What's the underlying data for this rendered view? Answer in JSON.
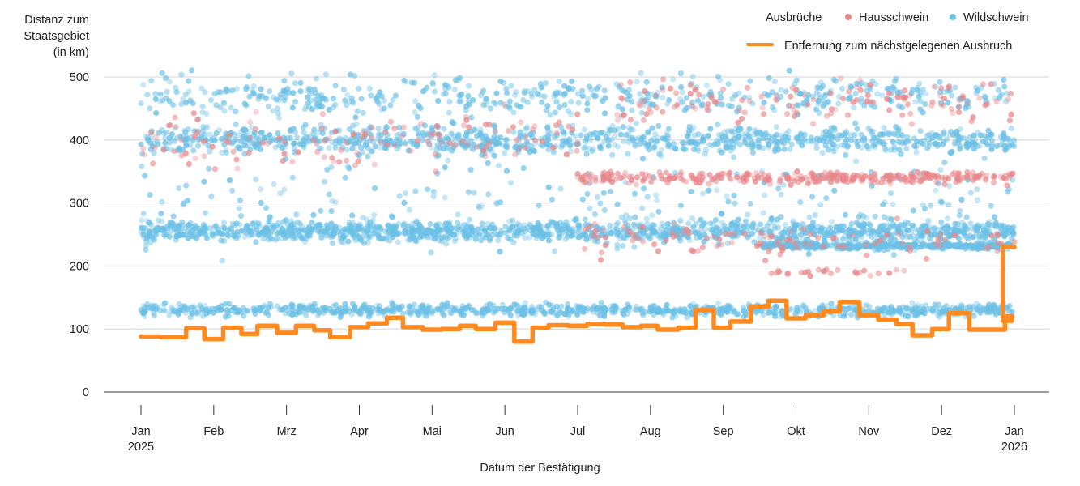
{
  "chart_data": {
    "type": "scatter",
    "ylabel_lines": [
      "Distanz zum",
      "Staatsgebiet",
      "(in km)"
    ],
    "xlabel": "Datum der Bestätigung",
    "ylim": [
      0,
      520
    ],
    "yticks": [
      0,
      100,
      200,
      300,
      400,
      500
    ],
    "x_range_months": [
      0,
      12
    ],
    "xticks": [
      {
        "label": "Jan",
        "sub": "2025",
        "pos": 0
      },
      {
        "label": "Feb",
        "sub": "",
        "pos": 1
      },
      {
        "label": "Mrz",
        "sub": "",
        "pos": 2
      },
      {
        "label": "Apr",
        "sub": "",
        "pos": 3
      },
      {
        "label": "Mai",
        "sub": "",
        "pos": 4
      },
      {
        "label": "Jun",
        "sub": "",
        "pos": 5
      },
      {
        "label": "Jul",
        "sub": "",
        "pos": 6
      },
      {
        "label": "Aug",
        "sub": "",
        "pos": 7
      },
      {
        "label": "Sep",
        "sub": "",
        "pos": 8
      },
      {
        "label": "Okt",
        "sub": "",
        "pos": 9
      },
      {
        "label": "Nov",
        "sub": "",
        "pos": 10
      },
      {
        "label": "Dez",
        "sub": "",
        "pos": 11
      },
      {
        "label": "Jan",
        "sub": "2026",
        "pos": 12
      }
    ],
    "legend": {
      "title": "Ausbrüche",
      "items": [
        {
          "name": "Hausschwein",
          "color": "#e8868a"
        },
        {
          "name": "Wildschwein",
          "color": "#6bc0e6"
        }
      ],
      "line": {
        "name": "Entfernung zum nächstgelegenen Ausbruch",
        "color": "#ff8a1f"
      }
    },
    "scatter_bands": [
      {
        "series": "Wildschwein",
        "x0": 0.0,
        "x1": 12.0,
        "y": 130,
        "spread": 14,
        "count": 900
      },
      {
        "series": "Wildschwein",
        "x0": 0.0,
        "x1": 12.0,
        "y": 255,
        "spread": 24,
        "count": 1300
      },
      {
        "series": "Wildschwein",
        "x0": 0.0,
        "x1": 12.0,
        "y": 400,
        "spread": 32,
        "count": 1000
      },
      {
        "series": "Wildschwein",
        "x0": 0.0,
        "x1": 12.0,
        "y": 470,
        "spread": 45,
        "count": 520
      },
      {
        "series": "Wildschwein",
        "x0": 8.5,
        "x1": 12.0,
        "y": 232,
        "spread": 8,
        "count": 380
      },
      {
        "series": "Wildschwein",
        "x0": 0.0,
        "x1": 12.0,
        "y": 300,
        "spread": 120,
        "count": 260
      },
      {
        "series": "Hausschwein",
        "x0": 6.0,
        "x1": 12.0,
        "y": 340,
        "spread": 14,
        "count": 340
      },
      {
        "series": "Hausschwein",
        "x0": 6.5,
        "x1": 12.0,
        "y": 460,
        "spread": 50,
        "count": 130
      },
      {
        "series": "Hausschwein",
        "x0": 0.0,
        "x1": 6.0,
        "y": 400,
        "spread": 70,
        "count": 130
      },
      {
        "series": "Hausschwein",
        "x0": 6.0,
        "x1": 12.0,
        "y": 240,
        "spread": 40,
        "count": 110
      },
      {
        "series": "Hausschwein",
        "x0": 8.5,
        "x1": 10.5,
        "y": 190,
        "spread": 8,
        "count": 25
      }
    ],
    "line_series": {
      "name": "Entfernung zum nächstgelegenen Ausbruch",
      "x": [
        0.0,
        0.27,
        0.38,
        0.62,
        0.87,
        1.13,
        1.38,
        1.6,
        1.87,
        2.13,
        2.38,
        2.6,
        2.87,
        3.12,
        3.38,
        3.6,
        3.87,
        4.13,
        4.38,
        4.6,
        4.87,
        5.13,
        5.38,
        5.6,
        5.87,
        6.13,
        6.38,
        6.62,
        6.87,
        7.1,
        7.38,
        7.62,
        7.87,
        8.1,
        8.38,
        8.62,
        8.87,
        9.13,
        9.38,
        9.6,
        9.87,
        10.13,
        10.38,
        10.6,
        10.87,
        11.1,
        11.38,
        11.6,
        11.87,
        11.97
      ],
      "y": [
        88,
        87,
        87,
        101,
        84,
        102,
        92,
        105,
        94,
        105,
        98,
        87,
        103,
        109,
        118,
        103,
        99,
        100,
        105,
        100,
        110,
        80,
        102,
        106,
        105,
        108,
        107,
        103,
        105,
        99,
        102,
        130,
        102,
        112,
        136,
        145,
        117,
        122,
        128,
        143,
        122,
        115,
        108,
        90,
        100,
        125,
        99,
        99,
        120,
        113
      ]
    },
    "line_tail": {
      "x": [
        11.87,
        12.0
      ],
      "y": [
        230,
        230
      ],
      "step_at": 11.84,
      "pre_y": 122
    }
  }
}
